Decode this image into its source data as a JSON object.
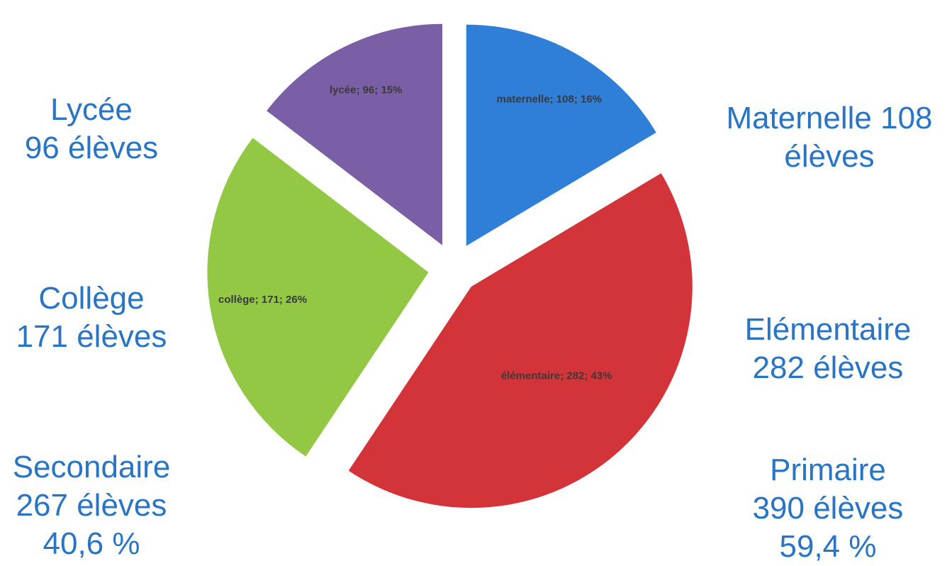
{
  "chart_data": {
    "type": "pie",
    "title": "",
    "slices": [
      {
        "label": "maternelle; 108; 16%",
        "name": "maternelle",
        "value": 108,
        "percent": 16,
        "color": "#2f7ed8"
      },
      {
        "label": "élémentaire; 282; 43%",
        "name": "élémentaire",
        "value": 282,
        "percent": 43,
        "color": "#d3343a"
      },
      {
        "label": "collège; 171; 26%",
        "name": "collège",
        "value": 171,
        "percent": 26,
        "color": "#92c843"
      },
      {
        "label": "lycée; 96; 15%",
        "name": "lycée",
        "value": 96,
        "percent": 15,
        "color": "#7a5ea6"
      }
    ],
    "data_label_color": "#3a3a3a"
  },
  "labels": {
    "lycee": {
      "line1": "Lycée",
      "line2": "96 élèves"
    },
    "college": {
      "line1": "Collège",
      "line2": "171 élèves"
    },
    "secondaire": {
      "line1": "Secondaire",
      "line2": "267 élèves",
      "line3": "40,6 %"
    },
    "maternelle": {
      "line1": "Maternelle 108",
      "line2": "élèves"
    },
    "elementaire": {
      "line1": "Elémentaire",
      "line2": "282 élèves"
    },
    "primaire": {
      "line1": "Primaire",
      "line2": "390 élèves",
      "line3": "59,4 %"
    }
  },
  "label_color": "#2a74c4"
}
